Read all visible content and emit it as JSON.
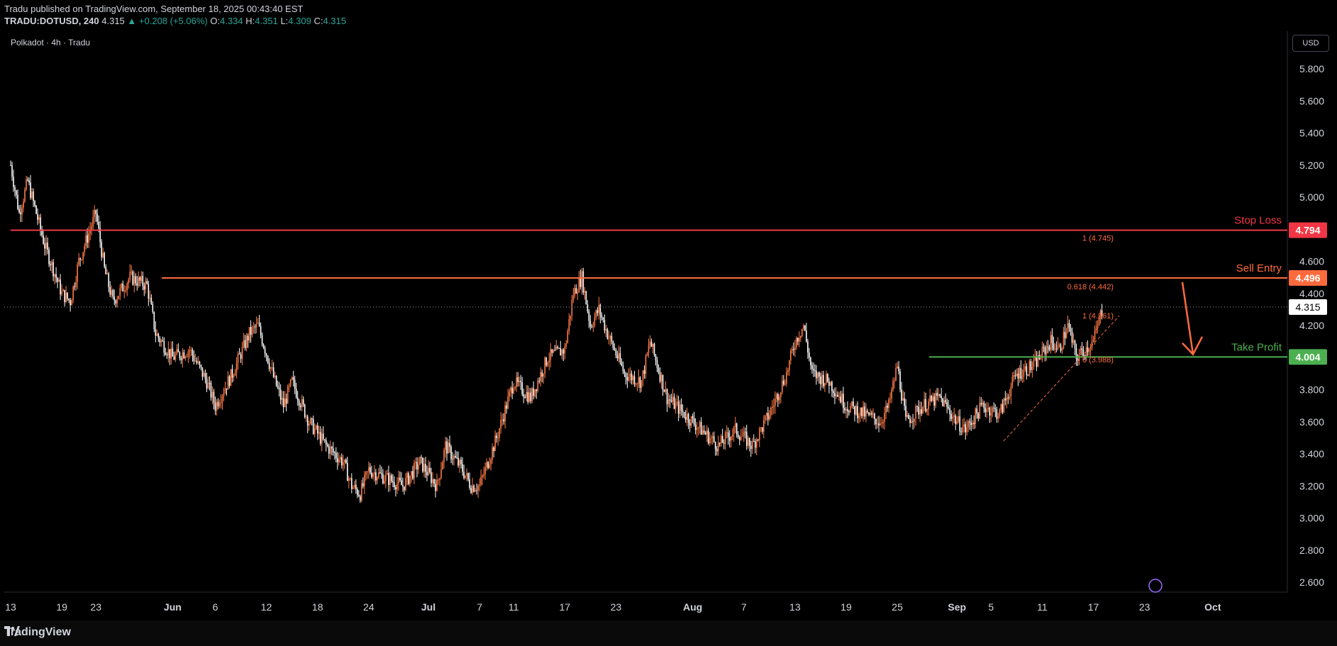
{
  "header": {
    "line1": "Tradu published on TradingView.com, September 18, 2025 00:43:40 EST",
    "symbol": "TRADU:DOTUSD, 240",
    "last": "4.315",
    "change": "▲ +0.208 (+5.06%)",
    "o_label": "O:",
    "o": "4.334",
    "h_label": "H:",
    "h": "4.351",
    "l_label": "L:",
    "l": "4.309",
    "c_label": "C:",
    "c": "4.315"
  },
  "chart_title": "Polkadot · 4h · Tradu",
  "currency_button": "USD",
  "footer": {
    "brand": "TradingView"
  },
  "colors": {
    "up": "#ff7a45",
    "down": "#ffffff",
    "stop": "#f23645",
    "entry": "#ff6a3d",
    "tp": "#4caf50",
    "grid": "#131722",
    "axis_text": "#d1d4dc",
    "fib": "#ff6a3d"
  },
  "levels": [
    {
      "name": "stop-loss",
      "label": "Stop Loss",
      "price": 4.794,
      "price_label": "4.794"
    },
    {
      "name": "sell-entry",
      "label": "Sell Entry",
      "price": 4.496,
      "price_label": "4.496"
    },
    {
      "name": "take-profit",
      "label": "Take Profit",
      "price": 4.004,
      "price_label": "4.004"
    }
  ],
  "current_price": {
    "price": 4.315,
    "label": "4.315"
  },
  "fib_labels": [
    {
      "text": "1 (4.745)",
      "price": 4.745,
      "date_index": 216
    },
    {
      "text": "0.618 (4.442)",
      "price": 4.442,
      "date_index": 216
    },
    {
      "text": "1 (4.261)",
      "price": 4.261,
      "date_index": 212
    },
    {
      "text": "0 (3.988)",
      "price": 3.988,
      "date_index": 216
    }
  ],
  "chart_data": {
    "type": "candlestick",
    "y_ticks": [
      "5.800",
      "5.600",
      "5.400",
      "5.200",
      "5.000",
      "4.600",
      "4.400",
      "4.200",
      "3.800",
      "3.600",
      "3.400",
      "3.200",
      "3.000",
      "2.800",
      "2.600"
    ],
    "y_tick_values": [
      5.8,
      5.6,
      5.4,
      5.2,
      5.0,
      4.6,
      4.4,
      4.2,
      3.8,
      3.6,
      3.4,
      3.2,
      3.0,
      2.8,
      2.6
    ],
    "ylim": [
      2.5,
      5.9
    ],
    "x_ticks": [
      {
        "label": "13",
        "day": 0
      },
      {
        "label": "19",
        "day": 6
      },
      {
        "label": "23",
        "day": 10
      },
      {
        "label": "Jun",
        "day": 19
      },
      {
        "label": "6",
        "day": 24
      },
      {
        "label": "12",
        "day": 30
      },
      {
        "label": "18",
        "day": 36
      },
      {
        "label": "24",
        "day": 42
      },
      {
        "label": "Jul",
        "day": 49
      },
      {
        "label": "7",
        "day": 55
      },
      {
        "label": "11",
        "day": 59
      },
      {
        "label": "17",
        "day": 65
      },
      {
        "label": "23",
        "day": 71
      },
      {
        "label": "Aug",
        "day": 80
      },
      {
        "label": "7",
        "day": 86
      },
      {
        "label": "13",
        "day": 92
      },
      {
        "label": "19",
        "day": 98
      },
      {
        "label": "25",
        "day": 104
      },
      {
        "label": "Sep",
        "day": 111
      },
      {
        "label": "5",
        "day": 115
      },
      {
        "label": "11",
        "day": 121
      },
      {
        "label": "17",
        "day": 127
      },
      {
        "label": "23",
        "day": 133
      },
      {
        "label": "Oct",
        "day": 141
      }
    ],
    "x_days_range": [
      0,
      143
    ],
    "key_closes": [
      [
        0,
        5.2
      ],
      [
        1,
        4.9
      ],
      [
        2,
        5.1
      ],
      [
        4,
        4.7
      ],
      [
        6,
        4.4
      ],
      [
        7,
        4.35
      ],
      [
        8,
        4.6
      ],
      [
        10,
        4.9
      ],
      [
        11,
        4.55
      ],
      [
        12,
        4.35
      ],
      [
        14,
        4.5
      ],
      [
        16,
        4.45
      ],
      [
        17,
        4.15
      ],
      [
        19,
        4.0
      ],
      [
        21,
        4.05
      ],
      [
        23,
        3.85
      ],
      [
        24,
        3.7
      ],
      [
        26,
        3.9
      ],
      [
        28,
        4.15
      ],
      [
        29,
        4.2
      ],
      [
        31,
        3.85
      ],
      [
        32,
        3.7
      ],
      [
        33,
        3.85
      ],
      [
        35,
        3.6
      ],
      [
        37,
        3.45
      ],
      [
        39,
        3.35
      ],
      [
        40,
        3.2
      ],
      [
        41,
        3.15
      ],
      [
        42,
        3.3
      ],
      [
        44,
        3.25
      ],
      [
        46,
        3.2
      ],
      [
        48,
        3.35
      ],
      [
        50,
        3.2
      ],
      [
        51,
        3.45
      ],
      [
        53,
        3.3
      ],
      [
        54,
        3.2
      ],
      [
        55,
        3.2
      ],
      [
        57,
        3.5
      ],
      [
        59,
        3.85
      ],
      [
        61,
        3.75
      ],
      [
        63,
        4.0
      ],
      [
        65,
        4.05
      ],
      [
        66,
        4.4
      ],
      [
        67,
        4.5
      ],
      [
        68,
        4.2
      ],
      [
        69,
        4.3
      ],
      [
        70,
        4.15
      ],
      [
        72,
        3.9
      ],
      [
        74,
        3.85
      ],
      [
        75,
        4.1
      ],
      [
        77,
        3.75
      ],
      [
        79,
        3.65
      ],
      [
        81,
        3.55
      ],
      [
        83,
        3.45
      ],
      [
        85,
        3.55
      ],
      [
        87,
        3.45
      ],
      [
        89,
        3.65
      ],
      [
        91,
        3.9
      ],
      [
        92,
        4.1
      ],
      [
        93,
        4.2
      ],
      [
        94,
        3.9
      ],
      [
        96,
        3.85
      ],
      [
        98,
        3.7
      ],
      [
        100,
        3.65
      ],
      [
        102,
        3.6
      ],
      [
        103,
        3.7
      ],
      [
        104,
        3.95
      ],
      [
        105,
        3.6
      ],
      [
        107,
        3.7
      ],
      [
        109,
        3.75
      ],
      [
        111,
        3.6
      ],
      [
        112,
        3.55
      ],
      [
        114,
        3.7
      ],
      [
        116,
        3.65
      ],
      [
        118,
        3.9
      ],
      [
        120,
        3.95
      ],
      [
        122,
        4.1
      ],
      [
        123,
        4.05
      ],
      [
        124,
        4.2
      ],
      [
        125,
        4.0
      ],
      [
        126,
        4.05
      ],
      [
        127,
        4.1
      ],
      [
        128,
        4.3
      ]
    ]
  }
}
